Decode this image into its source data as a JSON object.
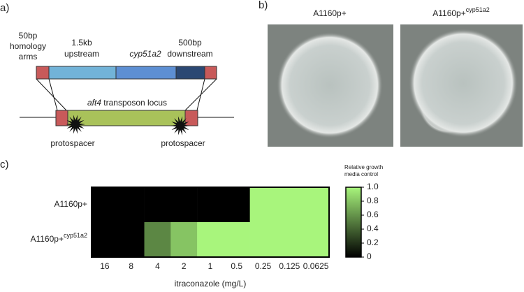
{
  "panel_labels": [
    "a)",
    "b)",
    "c)"
  ],
  "diagram": {
    "homology": [
      "50bp",
      "homology",
      "arms"
    ],
    "upstream": [
      "1.5kb",
      "upstream"
    ],
    "gene": "cyp51a2",
    "downstream": [
      "500bp",
      "downstream"
    ],
    "locus": {
      "italic": "aft4",
      "text": " transposon locus"
    },
    "protospacers": [
      "protospacer",
      "protospacer"
    ]
  },
  "photos": [
    {
      "text": "A1160p+"
    },
    {
      "text": "A1160p+",
      "sup": "cyp51a2"
    }
  ],
  "chart_data": {
    "type": "heatmap",
    "categories": [
      "16",
      "8",
      "4",
      "2",
      "1",
      "0.5",
      "0.25",
      "0.125",
      "0.0625"
    ],
    "y_categories": [
      {
        "text": "A1160p+"
      },
      {
        "text": "A1160p+",
        "sup": "cyp51a2"
      }
    ],
    "values": [
      [
        0,
        0,
        0,
        0,
        0,
        0,
        1,
        1,
        1
      ],
      [
        0,
        0,
        0.55,
        0.8,
        1,
        1,
        1,
        1,
        1
      ]
    ],
    "x_label": "itraconazole (mg/L)",
    "colorbar_title": [
      "Relative growth",
      "media control"
    ],
    "colors": [
      "#000000",
      "#a8f57c"
    ],
    "clim": [
      0,
      1
    ],
    "cticks": [
      0,
      0.2,
      0.4,
      0.6,
      0.8,
      {
        "value": 1,
        "label": "1.0"
      }
    ]
  }
}
